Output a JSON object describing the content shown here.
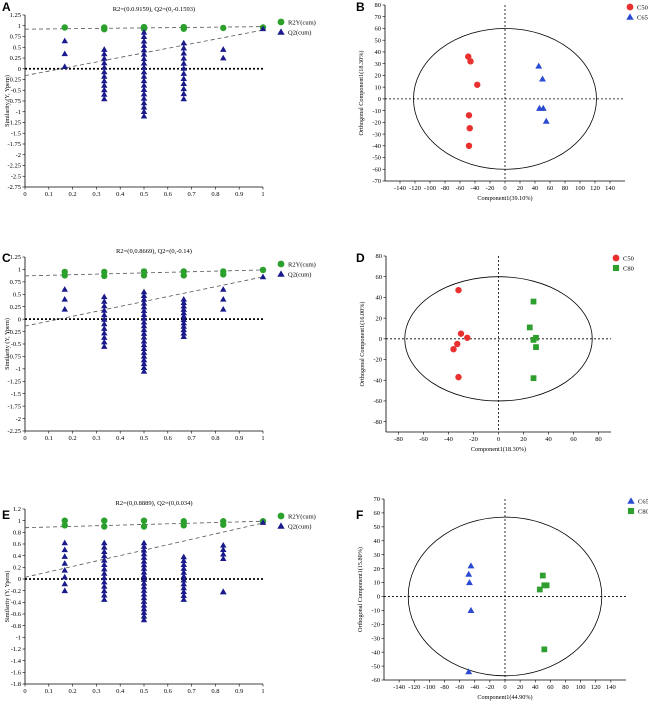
{
  "colors": {
    "green": "#2ca02c",
    "navy": "#1a1a8c",
    "red": "#e8312f",
    "blue": "#2a4bd1",
    "sqgreen": "#2e9e2e"
  },
  "chart_data": [
    {
      "panel": "A",
      "type": "scatter",
      "title": "R2=(0.0.9159), Q2=(0,-0.1593)",
      "ylabel": "Similarity (Y, Ypern)",
      "xlim": [
        0,
        1
      ],
      "ylim": [
        -2.75,
        1.25
      ],
      "xticks": [
        0,
        0.1,
        0.2,
        0.3,
        0.4,
        0.5,
        0.6,
        0.7,
        0.8,
        0.9,
        1
      ],
      "yticks": [
        1.25,
        1,
        0.75,
        0.5,
        0.25,
        0,
        -0.25,
        -0.5,
        -0.75,
        -1,
        -1.25,
        -1.5,
        -1.75,
        -2,
        -2.25,
        -2.5,
        -2.75
      ],
      "yfmt": 2,
      "series": [
        {
          "name": "R2Y(cum)",
          "color": "#2ca02c",
          "marker": "circle",
          "points": [
            [
              0.167,
              0.96
            ],
            [
              0.333,
              0.96
            ],
            [
              0.333,
              0.92
            ],
            [
              0.5,
              0.97
            ],
            [
              0.5,
              0.93
            ],
            [
              0.667,
              0.97
            ],
            [
              0.667,
              0.93
            ],
            [
              0.833,
              0.95
            ],
            [
              1,
              0.96
            ]
          ]
        },
        {
          "name": "Q2(cum)",
          "color": "#1a1a8c",
          "marker": "triangle",
          "cols": [
            [
              0.167,
              0.05,
              0.65,
              3
            ],
            [
              0.333,
              -0.7,
              0.45,
              12
            ],
            [
              0.5,
              -1.1,
              0.85,
              20
            ],
            [
              0.667,
              -0.7,
              0.6,
              12
            ],
            [
              0.833,
              0.25,
              0.45,
              2
            ],
            [
              1,
              0.93,
              0.93,
              1
            ]
          ]
        }
      ],
      "regressions": [
        [
          0,
          0.92,
          1,
          0.98
        ],
        [
          0,
          -0.16,
          1,
          0.9
        ]
      ]
    },
    {
      "panel": "C",
      "type": "scatter",
      "title": "R2=(0,0.8669), Q2=(0,-0.14)",
      "ylabel": "Similarity (Y, Ypern)",
      "xlim": [
        0,
        1
      ],
      "ylim": [
        -2.25,
        1.25
      ],
      "xticks": [
        0,
        0.1,
        0.2,
        0.3,
        0.4,
        0.5,
        0.6,
        0.7,
        0.8,
        0.9,
        1
      ],
      "yticks": [
        1.25,
        1,
        0.75,
        0.5,
        0.25,
        0,
        -0.25,
        -0.5,
        -0.75,
        -1,
        -1.25,
        -1.5,
        -1.75,
        -2,
        -2.25
      ],
      "yfmt": 2,
      "series": [
        {
          "name": "R2Y(cum)",
          "color": "#2ca02c",
          "marker": "circle",
          "points": [
            [
              0.167,
              0.95
            ],
            [
              0.167,
              0.88
            ],
            [
              0.333,
              0.95
            ],
            [
              0.333,
              0.87
            ],
            [
              0.5,
              0.96
            ],
            [
              0.5,
              0.88
            ],
            [
              0.667,
              0.96
            ],
            [
              0.667,
              0.88
            ],
            [
              0.833,
              0.96
            ],
            [
              0.833,
              0.9
            ],
            [
              1,
              0.99
            ]
          ]
        },
        {
          "name": "Q2(cum)",
          "color": "#1a1a8c",
          "marker": "triangle",
          "cols": [
            [
              0.167,
              0.2,
              0.6,
              3
            ],
            [
              0.333,
              -0.55,
              0.45,
              12
            ],
            [
              0.5,
              -1.05,
              0.55,
              22
            ],
            [
              0.667,
              -0.35,
              0.4,
              12
            ],
            [
              0.833,
              0.2,
              0.6,
              3
            ],
            [
              1,
              0.85,
              0.85,
              1
            ]
          ]
        }
      ],
      "regressions": [
        [
          0,
          0.87,
          1,
          0.99
        ],
        [
          0,
          -0.14,
          1,
          0.85
        ]
      ]
    },
    {
      "panel": "E",
      "type": "scatter",
      "title": "R2=(0,0.8889), Q2=(0,0.034)",
      "ylabel": "Similarity (Y, Ypern)",
      "xlim": [
        0,
        1
      ],
      "ylim": [
        -1.8,
        1.2
      ],
      "xticks": [
        0,
        0.1,
        0.2,
        0.3,
        0.4,
        0.5,
        0.6,
        0.7,
        0.8,
        0.9,
        1
      ],
      "yticks": [
        1.2,
        1,
        0.8,
        0.6,
        0.4,
        0.2,
        0,
        -0.2,
        -0.4,
        -0.6,
        -0.8,
        -1,
        -1.2,
        -1.4,
        -1.6,
        -1.8
      ],
      "yfmt": 1,
      "series": [
        {
          "name": "R2Y(cum)",
          "color": "#2ca02c",
          "marker": "circle",
          "points": [
            [
              0.167,
              1.0
            ],
            [
              0.167,
              0.92
            ],
            [
              0.333,
              1.0
            ],
            [
              0.333,
              0.9
            ],
            [
              0.5,
              1.0
            ],
            [
              0.5,
              0.9
            ],
            [
              0.667,
              0.99
            ],
            [
              0.667,
              0.92
            ],
            [
              0.833,
              0.99
            ],
            [
              0.833,
              0.93
            ],
            [
              1,
              0.99
            ]
          ]
        },
        {
          "name": "Q2(cum)",
          "color": "#1a1a8c",
          "marker": "triangle",
          "cols": [
            [
              0.167,
              -0.2,
              0.62,
              8
            ],
            [
              0.333,
              -0.35,
              0.62,
              14
            ],
            [
              0.5,
              -0.7,
              0.62,
              22
            ],
            [
              0.667,
              -0.35,
              0.38,
              12
            ],
            [
              0.833,
              0.35,
              0.58,
              4
            ],
            [
              1,
              0.97,
              0.97,
              1
            ]
          ]
        },
        {
          "name": "",
          "color": "#1a1a8c",
          "marker": "triangle",
          "points": [
            [
              0.833,
              -0.22
            ]
          ]
        }
      ],
      "regressions": [
        [
          0,
          0.88,
          1,
          0.99
        ],
        [
          0,
          0.03,
          1,
          0.96
        ]
      ]
    },
    {
      "panel": "B",
      "type": "scatter",
      "xlabel": "Component1(39.10%)",
      "ylabel": "Orthogonal Component1(18.30%)",
      "xlim": [
        -160,
        160
      ],
      "ylim": [
        -70,
        80
      ],
      "xticks": [
        -140,
        -120,
        -100,
        -80,
        -60,
        -40,
        -20,
        0,
        20,
        40,
        60,
        80,
        100,
        120,
        140
      ],
      "yticks": [
        80,
        70,
        60,
        50,
        40,
        30,
        20,
        10,
        0,
        -10,
        -20,
        -30,
        -40,
        -50,
        -60,
        -70
      ],
      "ellipse": [
        122,
        60
      ],
      "series": [
        {
          "name": "C50",
          "color": "#e8312f",
          "marker": "circle",
          "points": [
            [
              -49,
              36
            ],
            [
              -46,
              32
            ],
            [
              -37,
              12
            ],
            [
              -48,
              -14
            ],
            [
              -47,
              -25
            ],
            [
              -48,
              -40
            ]
          ]
        },
        {
          "name": "C65",
          "color": "#2a4bd1",
          "marker": "triangle",
          "points": [
            [
              45,
              28
            ],
            [
              50,
              17
            ],
            [
              46,
              -8
            ],
            [
              51,
              -8
            ],
            [
              55,
              -19
            ]
          ]
        }
      ]
    },
    {
      "panel": "D",
      "type": "scatter",
      "xlabel": "Component1(18.30%)",
      "ylabel": "Orthogonal Component1(16.00%)",
      "xlim": [
        -90,
        90
      ],
      "ylim": [
        -90,
        80
      ],
      "xticks": [
        -80,
        -60,
        -40,
        -20,
        0,
        20,
        40,
        60,
        80
      ],
      "yticks": [
        80,
        60,
        40,
        20,
        0,
        -20,
        -40,
        -60,
        -80
      ],
      "ellipse": [
        75,
        60
      ],
      "series": [
        {
          "name": "C50",
          "color": "#e8312f",
          "marker": "circle",
          "points": [
            [
              -32,
              47
            ],
            [
              -30,
              5
            ],
            [
              -25,
              1
            ],
            [
              -33,
              -5
            ],
            [
              -36,
              -10
            ],
            [
              -32,
              -37
            ]
          ]
        },
        {
          "name": "C80",
          "color": "#2e9e2e",
          "marker": "square",
          "points": [
            [
              28,
              36
            ],
            [
              25,
              11
            ],
            [
              30,
              1
            ],
            [
              28,
              -1
            ],
            [
              30,
              -8
            ],
            [
              28,
              -38
            ]
          ]
        }
      ]
    },
    {
      "panel": "F",
      "type": "scatter",
      "xlabel": "Component1(44.90%)",
      "ylabel": "Orthogonal Component1(15.80%)",
      "xlim": [
        -160,
        160
      ],
      "ylim": [
        -60,
        70
      ],
      "xticks": [
        -140,
        -120,
        -100,
        -80,
        -60,
        -40,
        -20,
        0,
        20,
        40,
        60,
        80,
        100,
        120,
        140
      ],
      "yticks": [
        70,
        60,
        50,
        40,
        30,
        20,
        10,
        0,
        -10,
        -20,
        -30,
        -40,
        -50,
        -60
      ],
      "ellipse": [
        128,
        57
      ],
      "series": [
        {
          "name": "C65",
          "color": "#2a4bd1",
          "marker": "triangle",
          "points": [
            [
              -45,
              22
            ],
            [
              -48,
              16
            ],
            [
              -47,
              10
            ],
            [
              -45,
              -10
            ],
            [
              -48,
              -54
            ]
          ]
        },
        {
          "name": "C80",
          "color": "#2e9e2e",
          "marker": "square",
          "points": [
            [
              50,
              15
            ],
            [
              52,
              8
            ],
            [
              55,
              8
            ],
            [
              46,
              5
            ],
            [
              52,
              -38
            ]
          ]
        }
      ]
    }
  ]
}
